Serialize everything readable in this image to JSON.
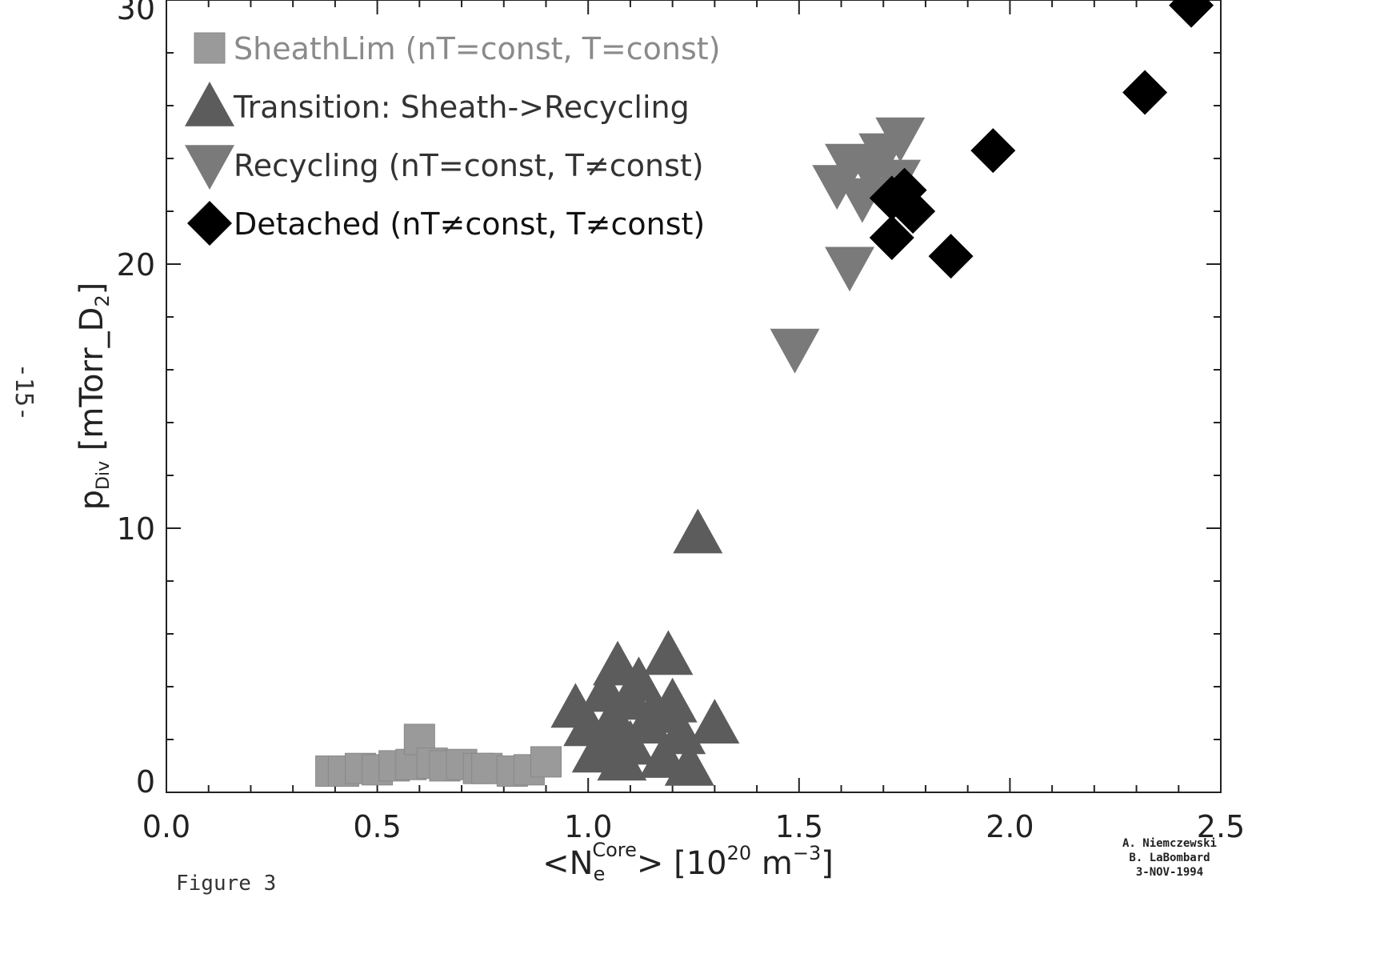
{
  "page": {
    "page_number": "-15-",
    "figure_caption": "Figure 3",
    "credits": [
      "A. Niemczewski",
      "B. LaBombard",
      "3-NOV-1994"
    ]
  },
  "chart_data": {
    "type": "scatter",
    "title": "",
    "xlabel_parts": {
      "open": "<N",
      "sub": "e",
      "sup": "Core",
      "close": "> [10",
      "exp": "20",
      "unit": " m",
      "unit_exp": "−3",
      "end": "]"
    },
    "ylabel_parts": {
      "main": "p",
      "sub": "Div",
      "rest": " [mTorr_D",
      "sub2": "2",
      "end": "]"
    },
    "xlim": [
      0.0,
      2.5
    ],
    "ylim": [
      0,
      30
    ],
    "xticks": [
      "0.0",
      "0.5",
      "1.0",
      "1.5",
      "2.0",
      "2.5"
    ],
    "xtick_values": [
      0.0,
      0.5,
      1.0,
      1.5,
      2.0,
      2.5
    ],
    "yticks": [
      "0",
      "10",
      "20",
      "30"
    ],
    "ytick_values": [
      0,
      10,
      20,
      30
    ],
    "legend_position": "top-left",
    "grid": false,
    "series": [
      {
        "name": "SheathLim (nT=const, T=const)",
        "marker": "square",
        "color": "#9a9a9a",
        "points": [
          [
            0.39,
            0.5
          ],
          [
            0.42,
            0.5
          ],
          [
            0.46,
            0.6
          ],
          [
            0.5,
            0.55
          ],
          [
            0.54,
            0.7
          ],
          [
            0.58,
            0.75
          ],
          [
            0.6,
            1.7
          ],
          [
            0.63,
            0.8
          ],
          [
            0.66,
            0.7
          ],
          [
            0.7,
            0.75
          ],
          [
            0.74,
            0.6
          ],
          [
            0.76,
            0.6
          ],
          [
            0.82,
            0.5
          ],
          [
            0.86,
            0.55
          ],
          [
            0.9,
            0.85
          ]
        ]
      },
      {
        "name": "Transition: Sheath->Recycling",
        "marker": "triangle-up",
        "color": "#5c5c5c",
        "points": [
          [
            0.97,
            3.2
          ],
          [
            1.0,
            2.5
          ],
          [
            1.02,
            1.5
          ],
          [
            1.04,
            3.8
          ],
          [
            1.06,
            2.8
          ],
          [
            1.07,
            4.8
          ],
          [
            1.08,
            1.2
          ],
          [
            1.1,
            3.5
          ],
          [
            1.12,
            4.2
          ],
          [
            1.14,
            2.6
          ],
          [
            1.16,
            3.0
          ],
          [
            1.18,
            1.3
          ],
          [
            1.19,
            5.2
          ],
          [
            1.2,
            3.4
          ],
          [
            1.22,
            2.2
          ],
          [
            1.24,
            1.0
          ],
          [
            1.26,
            9.8
          ],
          [
            1.3,
            2.6
          ],
          [
            1.05,
            2.0
          ],
          [
            1.1,
            1.8
          ]
        ]
      },
      {
        "name": "Recycling (nT=const, T≠const)",
        "marker": "triangle-down",
        "color": "#7a7a7a",
        "points": [
          [
            1.49,
            16.8
          ],
          [
            1.59,
            23.0
          ],
          [
            1.62,
            23.8
          ],
          [
            1.62,
            19.9
          ],
          [
            1.65,
            22.5
          ],
          [
            1.67,
            23.5
          ],
          [
            1.7,
            24.2
          ],
          [
            1.73,
            23.2
          ],
          [
            1.74,
            24.8
          ]
        ]
      },
      {
        "name": "Detached (nT≠const, T≠const)",
        "marker": "diamond",
        "color": "#000000",
        "points": [
          [
            1.72,
            21.0
          ],
          [
            1.72,
            22.5
          ],
          [
            1.75,
            22.8
          ],
          [
            1.77,
            22.0
          ],
          [
            1.86,
            20.3
          ],
          [
            1.96,
            24.3
          ],
          [
            2.32,
            26.5
          ],
          [
            2.43,
            29.8
          ]
        ]
      }
    ]
  }
}
